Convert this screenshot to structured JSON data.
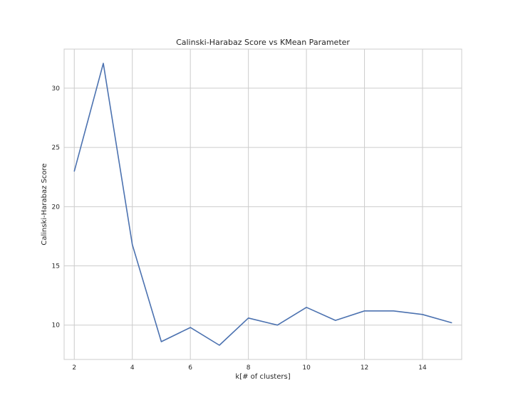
{
  "chart_data": {
    "type": "line",
    "title": "Calinski-Harabaz Score vs KMean Parameter",
    "xlabel": "k[# of clusters]",
    "ylabel": "Calinski-Harabaz Score",
    "grid": true,
    "xlim": [
      1.65,
      15.35
    ],
    "ylim": [
      7.1,
      33.3
    ],
    "xticks": [
      2,
      4,
      6,
      8,
      10,
      12,
      14
    ],
    "yticks": [
      10,
      15,
      20,
      25,
      30
    ],
    "series": [
      {
        "color": "#4c72b0",
        "x": [
          2,
          3,
          4,
          5,
          6,
          7,
          8,
          9,
          10,
          11,
          12,
          13,
          14,
          15
        ],
        "y": [
          23.0,
          32.1,
          16.8,
          8.6,
          9.8,
          8.3,
          10.6,
          10.0,
          11.5,
          10.4,
          11.2,
          11.2,
          10.9,
          10.2
        ]
      }
    ]
  }
}
